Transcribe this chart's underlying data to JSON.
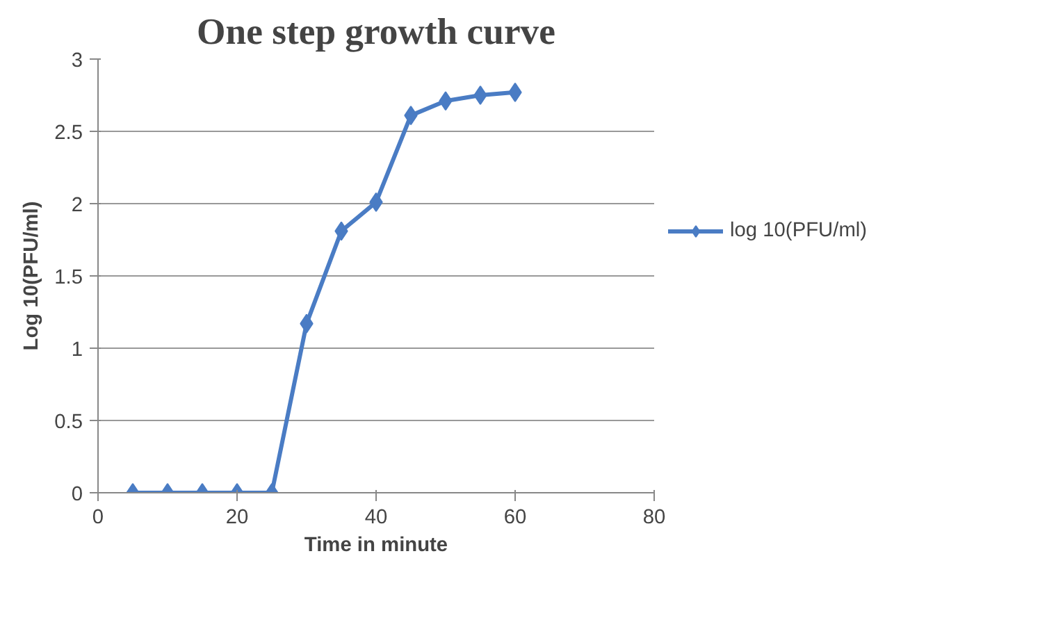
{
  "chart_data": {
    "type": "line",
    "title": "One step growth curve",
    "xlabel": "Time in minute",
    "ylabel": "Log 10(PFU/ml)",
    "x": [
      5,
      10,
      15,
      20,
      25,
      30,
      35,
      40,
      45,
      50,
      55,
      60
    ],
    "series": [
      {
        "name": "log 10(PFU/ml)",
        "color": "#4a7cc4",
        "values": [
          0,
          0,
          0,
          0,
          0,
          1.17,
          1.81,
          2.01,
          2.61,
          2.71,
          2.75,
          2.77
        ]
      }
    ],
    "xlim": [
      0,
      80
    ],
    "xticks": [
      0,
      20,
      40,
      60,
      80
    ],
    "ylim": [
      0,
      3
    ],
    "yticks": [
      0,
      0.5,
      1,
      1.5,
      2,
      2.5,
      3
    ],
    "grid": "y",
    "legend": "right",
    "marker": "diamond",
    "line_style": "solid"
  }
}
